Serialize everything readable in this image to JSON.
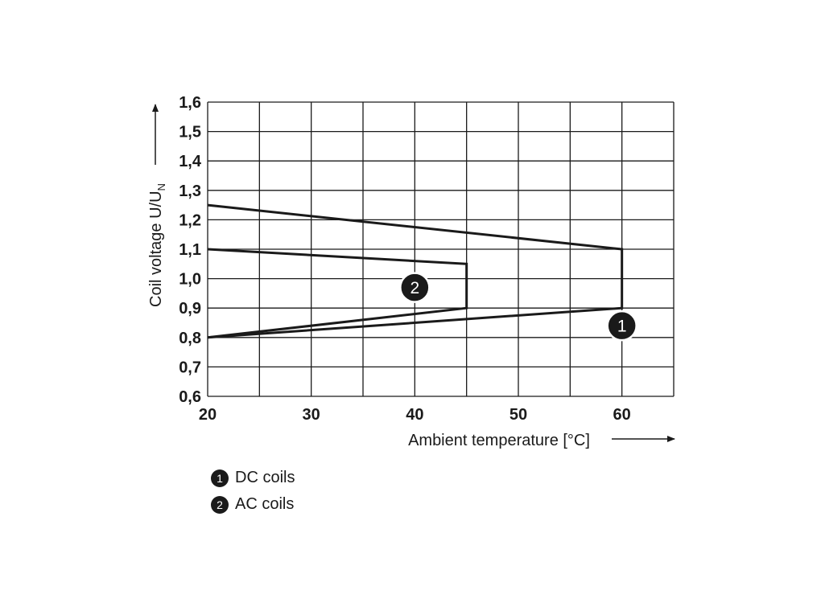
{
  "chart_data": {
    "type": "line",
    "title": "",
    "xlabel": "Ambient temperature [°C]",
    "ylabel": "Coil voltage U/U",
    "ylabel_subscript": "N",
    "xlim": [
      20,
      65
    ],
    "ylim": [
      0.6,
      1.6
    ],
    "x_gridlines": [
      20,
      25,
      30,
      35,
      40,
      45,
      50,
      55,
      60,
      65
    ],
    "y_gridlines": [
      0.6,
      0.7,
      0.8,
      0.9,
      1.0,
      1.1,
      1.2,
      1.3,
      1.4,
      1.5,
      1.6
    ],
    "x_ticks": [
      20,
      30,
      40,
      50,
      60
    ],
    "x_tick_labels": [
      "20",
      "30",
      "40",
      "50",
      "60"
    ],
    "y_ticks": [
      0.6,
      0.7,
      0.8,
      0.9,
      1.0,
      1.1,
      1.2,
      1.3,
      1.4,
      1.5,
      1.6
    ],
    "y_tick_labels": [
      "0,6",
      "0,7",
      "0,8",
      "0,9",
      "1,0",
      "1,1",
      "1,2",
      "1,3",
      "1,4",
      "1,5",
      "1,6"
    ],
    "grid": true,
    "series": [
      {
        "name": "DC coils",
        "marker": "1",
        "marker_at": {
          "x": 60,
          "y": 0.84
        },
        "points": [
          {
            "x": 20,
            "y": 1.25
          },
          {
            "x": 60,
            "y": 1.1
          },
          {
            "x": 60,
            "y": 0.9
          },
          {
            "x": 20,
            "y": 0.8
          }
        ]
      },
      {
        "name": "AC coils",
        "marker": "2",
        "marker_at": {
          "x": 40,
          "y": 0.97
        },
        "points": [
          {
            "x": 20,
            "y": 1.1
          },
          {
            "x": 45,
            "y": 1.05
          },
          {
            "x": 45,
            "y": 0.9
          },
          {
            "x": 20,
            "y": 0.8
          }
        ]
      }
    ]
  },
  "legend": {
    "items": [
      {
        "badge": "1",
        "label": "DC coils"
      },
      {
        "badge": "2",
        "label": "AC coils"
      }
    ]
  }
}
